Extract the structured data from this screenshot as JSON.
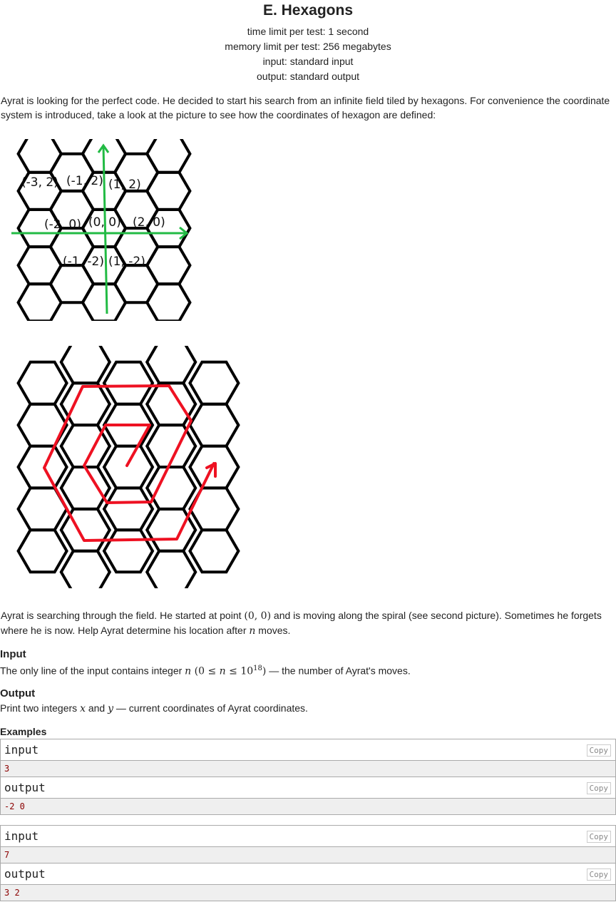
{
  "header": {
    "title": "E. Hexagons",
    "time_limit": "time limit per test: 1 second",
    "memory_limit": "memory limit per test: 256 megabytes",
    "input": "input: standard input",
    "output": "output: standard output"
  },
  "statement": {
    "intro": "Ayrat is looking for the perfect code. He decided to start his search from an infinite field tiled by hexagons. For convenience the coordinate system is introduced, take a look at the picture to see how the coordinates of hexagon are defined:",
    "p2_a": "Ayrat is searching through the field. He started at point ",
    "p2_point": "(0, 0)",
    "p2_b": " and is moving along the spiral (see second picture). Sometimes he forgets where he is now. Help Ayrat determine his location after ",
    "p2_n": "n",
    "p2_c": " moves."
  },
  "figure1": {
    "labels": [
      "(-3, 2)",
      "(-1, 2)",
      "(1, 2)",
      "(-2, 0)",
      "(0, 0)",
      "(2, 0)",
      "(-1, -2)",
      "(1, -2)"
    ],
    "axis_color": "#22bb44",
    "grid_color": "#000000"
  },
  "figure2": {
    "spiral_color": "#ee1122",
    "grid_color": "#000000"
  },
  "input_section": {
    "title": "Input",
    "text_a": "The only line of the input contains integer ",
    "n": "n",
    "range_open": " (0 ≤ ",
    "range_n": "n",
    "range_le": " ≤ 10",
    "exp": "18",
    "range_close": ")",
    "text_b": " — the number of Ayrat's moves."
  },
  "output_section": {
    "title": "Output",
    "text_a": "Print two integers ",
    "x": "x",
    "and": " and ",
    "y": "y",
    "text_b": " — current coordinates of Ayrat coordinates."
  },
  "examples": {
    "title": "Examples",
    "copy_label": "Copy",
    "input_label": "input",
    "output_label": "output",
    "items": [
      {
        "input": "3",
        "output": "-2 0"
      },
      {
        "input": "7",
        "output": "3 2"
      }
    ]
  }
}
